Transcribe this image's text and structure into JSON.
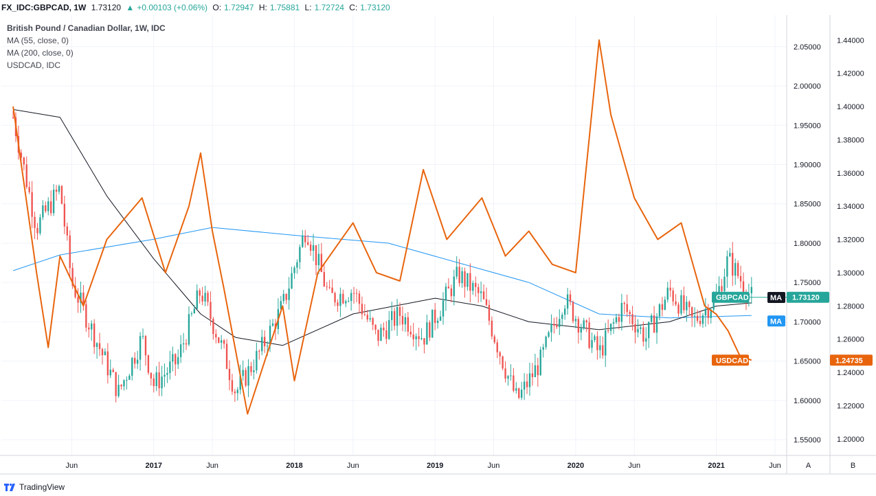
{
  "header": {
    "symbol": "FX_IDC:GBPCAD, 1W",
    "last": "1.73120",
    "change": "+0.00103 (+0.06%)",
    "o_label": "O:",
    "o_value": "1.72947",
    "h_label": "H:",
    "h_value": "1.75881",
    "l_label": "L:",
    "l_value": "1.72724",
    "c_label": "C:",
    "c_value": "1.73120"
  },
  "legend": {
    "title": "British Pound / Canadian Dollar, 1W, IDC",
    "ma55": "MA (55, close, 0)",
    "ma200": "MA (200, close, 0)",
    "compare": "USDCAD, IDC"
  },
  "branding": {
    "name": "TradingView"
  },
  "colors": {
    "up": "#26a69a",
    "down": "#ef5350",
    "usdcad": "#e8640c",
    "ma55": "#131722",
    "ma200": "#2196f3",
    "grid": "#f0f3fa"
  },
  "chart_data": {
    "type": "candlestick",
    "series": [
      {
        "name": "GBPCAD",
        "kind": "candlestick",
        "axis": "A",
        "key_points": [
          {
            "date": "2016-01",
            "value": 1.96
          },
          {
            "date": "2016-03",
            "value": 1.82
          },
          {
            "date": "2016-05",
            "value": 1.87
          },
          {
            "date": "2016-06",
            "value": 1.75
          },
          {
            "date": "2016-08",
            "value": 1.68
          },
          {
            "date": "2016-10",
            "value": 1.61
          },
          {
            "date": "2016-12",
            "value": 1.68
          },
          {
            "date": "2017-01",
            "value": 1.62
          },
          {
            "date": "2017-03",
            "value": 1.65
          },
          {
            "date": "2017-05",
            "value": 1.74
          },
          {
            "date": "2017-07",
            "value": 1.66
          },
          {
            "date": "2017-08",
            "value": 1.61
          },
          {
            "date": "2017-10",
            "value": 1.66
          },
          {
            "date": "2017-12",
            "value": 1.72
          },
          {
            "date": "2018-02",
            "value": 1.82
          },
          {
            "date": "2018-04",
            "value": 1.73
          },
          {
            "date": "2018-06",
            "value": 1.74
          },
          {
            "date": "2018-08",
            "value": 1.68
          },
          {
            "date": "2018-10",
            "value": 1.71
          },
          {
            "date": "2018-12",
            "value": 1.68
          },
          {
            "date": "2019-03",
            "value": 1.76
          },
          {
            "date": "2019-05",
            "value": 1.73
          },
          {
            "date": "2019-07",
            "value": 1.64
          },
          {
            "date": "2019-08",
            "value": 1.6
          },
          {
            "date": "2019-10",
            "value": 1.65
          },
          {
            "date": "2019-12",
            "value": 1.73
          },
          {
            "date": "2020-03",
            "value": 1.66
          },
          {
            "date": "2020-05",
            "value": 1.72
          },
          {
            "date": "2020-07",
            "value": 1.68
          },
          {
            "date": "2020-09",
            "value": 1.74
          },
          {
            "date": "2020-11",
            "value": 1.7
          },
          {
            "date": "2021-01",
            "value": 1.73
          },
          {
            "date": "2021-02",
            "value": 1.78
          },
          {
            "date": "2021-04",
            "value": 1.7312
          }
        ]
      },
      {
        "name": "MA",
        "kind": "line",
        "axis": "A",
        "key_points": [
          {
            "date": "2016-01",
            "value": 1.97
          },
          {
            "date": "2016-05",
            "value": 1.96
          },
          {
            "date": "2016-09",
            "value": 1.86
          },
          {
            "date": "2017-01",
            "value": 1.78
          },
          {
            "date": "2017-05",
            "value": 1.71
          },
          {
            "date": "2017-08",
            "value": 1.68
          },
          {
            "date": "2017-12",
            "value": 1.67
          },
          {
            "date": "2018-06",
            "value": 1.71
          },
          {
            "date": "2019-01",
            "value": 1.73
          },
          {
            "date": "2019-05",
            "value": 1.72
          },
          {
            "date": "2019-09",
            "value": 1.7
          },
          {
            "date": "2020-03",
            "value": 1.69
          },
          {
            "date": "2020-09",
            "value": 1.7
          },
          {
            "date": "2021-01",
            "value": 1.72
          },
          {
            "date": "2021-04",
            "value": 1.724
          }
        ]
      },
      {
        "name": "MA",
        "kind": "line",
        "axis": "A",
        "key_points": [
          {
            "date": "2016-01",
            "value": 1.765
          },
          {
            "date": "2016-05",
            "value": 1.785
          },
          {
            "date": "2017-01",
            "value": 1.805
          },
          {
            "date": "2017-06",
            "value": 1.82
          },
          {
            "date": "2018-01",
            "value": 1.81
          },
          {
            "date": "2018-09",
            "value": 1.8
          },
          {
            "date": "2019-03",
            "value": 1.775
          },
          {
            "date": "2019-09",
            "value": 1.75
          },
          {
            "date": "2020-03",
            "value": 1.71
          },
          {
            "date": "2020-09",
            "value": 1.705
          },
          {
            "date": "2021-04",
            "value": 1.708
          }
        ]
      },
      {
        "name": "USDCAD",
        "kind": "line",
        "axis": "B",
        "key_points": [
          {
            "date": "2016-01",
            "value": 1.4
          },
          {
            "date": "2016-03",
            "value": 1.3
          },
          {
            "date": "2016-04",
            "value": 1.255
          },
          {
            "date": "2016-05",
            "value": 1.31
          },
          {
            "date": "2016-07",
            "value": 1.28
          },
          {
            "date": "2016-09",
            "value": 1.32
          },
          {
            "date": "2016-12",
            "value": 1.345
          },
          {
            "date": "2017-02",
            "value": 1.3
          },
          {
            "date": "2017-04",
            "value": 1.34
          },
          {
            "date": "2017-05",
            "value": 1.372
          },
          {
            "date": "2017-06",
            "value": 1.325
          },
          {
            "date": "2017-07",
            "value": 1.29
          },
          {
            "date": "2017-09",
            "value": 1.215
          },
          {
            "date": "2017-12",
            "value": 1.28
          },
          {
            "date": "2018-01",
            "value": 1.235
          },
          {
            "date": "2018-03",
            "value": 1.3
          },
          {
            "date": "2018-06",
            "value": 1.33
          },
          {
            "date": "2018-08",
            "value": 1.3
          },
          {
            "date": "2018-10",
            "value": 1.295
          },
          {
            "date": "2018-12",
            "value": 1.362
          },
          {
            "date": "2019-02",
            "value": 1.32
          },
          {
            "date": "2019-05",
            "value": 1.345
          },
          {
            "date": "2019-07",
            "value": 1.31
          },
          {
            "date": "2019-09",
            "value": 1.325
          },
          {
            "date": "2019-11",
            "value": 1.305
          },
          {
            "date": "2020-01",
            "value": 1.3
          },
          {
            "date": "2020-03",
            "value": 1.44
          },
          {
            "date": "2020-04",
            "value": 1.395
          },
          {
            "date": "2020-06",
            "value": 1.345
          },
          {
            "date": "2020-08",
            "value": 1.32
          },
          {
            "date": "2020-10",
            "value": 1.33
          },
          {
            "date": "2020-12",
            "value": 1.28
          },
          {
            "date": "2021-01",
            "value": 1.275
          },
          {
            "date": "2021-02",
            "value": 1.265
          },
          {
            "date": "2021-03",
            "value": 1.25
          },
          {
            "date": "2021-04",
            "value": 1.24735
          }
        ]
      }
    ],
    "axis_a": {
      "label": "A",
      "range": [
        1.53,
        2.09
      ],
      "ticks": [
        "2.05000",
        "2.00000",
        "1.95000",
        "1.90000",
        "1.85000",
        "1.80000",
        "1.75000",
        "1.70000",
        "1.65000",
        "1.60000",
        "1.55000"
      ]
    },
    "axis_b": {
      "label": "B",
      "range": [
        1.19,
        1.455
      ],
      "ticks": [
        "1.44000",
        "1.42000",
        "1.40000",
        "1.38000",
        "1.36000",
        "1.34000",
        "1.32000",
        "1.30000",
        "1.28000",
        "1.26000",
        "1.24000",
        "1.22000",
        "1.20000"
      ]
    },
    "x_axis": {
      "range": [
        "2015-12",
        "2021-07"
      ],
      "ticks": [
        {
          "date": "2016-06",
          "label": "Jun",
          "bold": false
        },
        {
          "date": "2017-01",
          "label": "2017",
          "bold": true
        },
        {
          "date": "2017-06",
          "label": "Jun",
          "bold": false
        },
        {
          "date": "2018-01",
          "label": "2018",
          "bold": true
        },
        {
          "date": "2018-06",
          "label": "Jun",
          "bold": false
        },
        {
          "date": "2019-01",
          "label": "2019",
          "bold": true
        },
        {
          "date": "2019-06",
          "label": "Jun",
          "bold": false
        },
        {
          "date": "2020-01",
          "label": "2020",
          "bold": true
        },
        {
          "date": "2020-06",
          "label": "Jun",
          "bold": false
        },
        {
          "date": "2021-01",
          "label": "2021",
          "bold": true
        },
        {
          "date": "2021-06",
          "label": "Jun",
          "bold": false
        }
      ]
    },
    "price_tags": [
      {
        "text": "GBPCAD",
        "value_text": "1.73120",
        "value": 1.7312,
        "axis": "A",
        "color": "#26a69a"
      },
      {
        "text": "MA",
        "value": 1.724,
        "axis": "A",
        "color": "#131722"
      },
      {
        "text": "MA",
        "value": 1.708,
        "axis": "A",
        "color": "#2196f3"
      },
      {
        "text": "USDCAD",
        "value_text": "1.24735",
        "value": 1.24735,
        "axis": "B",
        "color": "#e8640c"
      }
    ],
    "grid": true
  }
}
